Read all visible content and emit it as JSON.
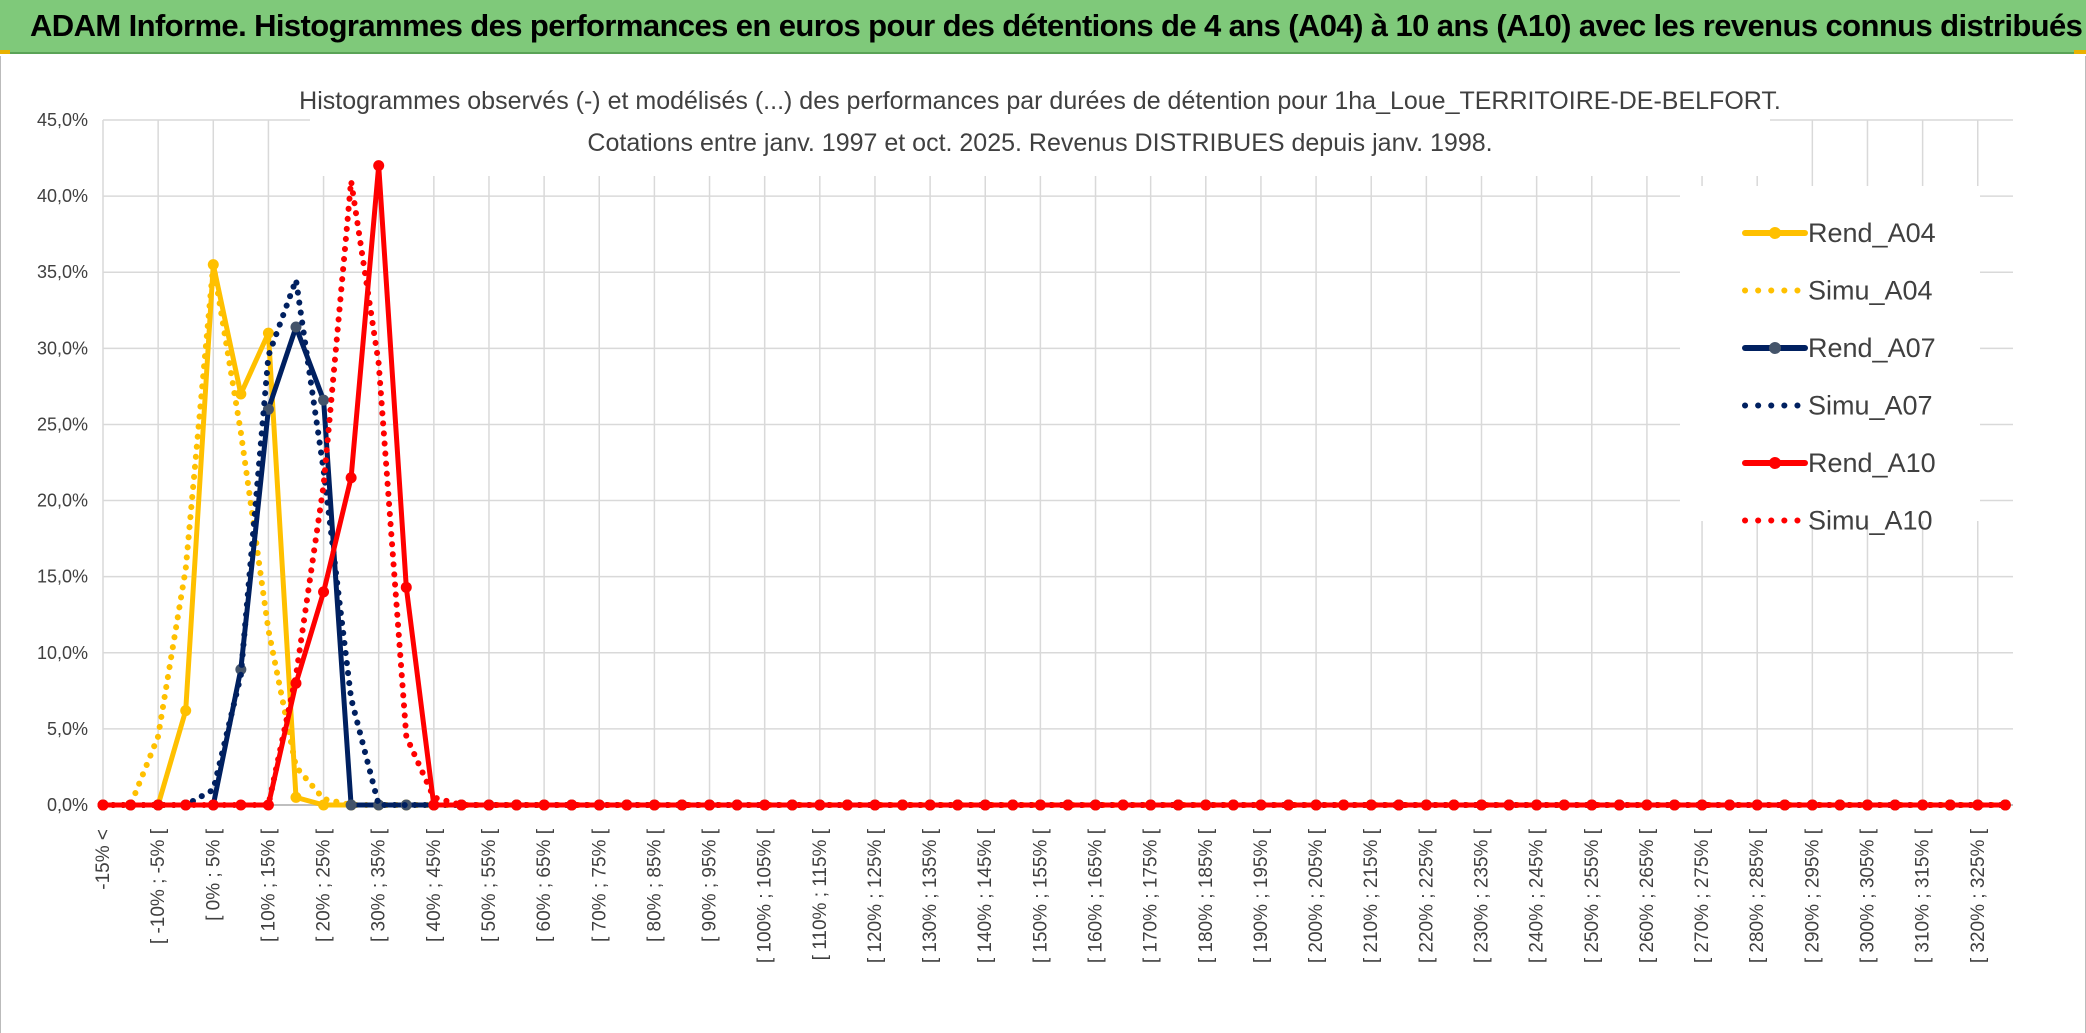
{
  "banner": {
    "title": "ADAM Informe. Histogrammes des performances en euros pour des détentions de 4 ans (A04) à 10 ans (A10) avec les revenus connus distribués"
  },
  "colors": {
    "banner_bg": "#7fc97a",
    "A04": "#ffc000",
    "A07": "#002060",
    "A10": "#ff0000",
    "A07_marker": "#44546a"
  },
  "chart_data": {
    "type": "line",
    "title": "Histogrammes observés (-) et modélisés (...) des performances par durées de détention pour 1ha_Loue_TERRITOIRE-DE-BELFORT.",
    "subtitle": "Cotations entre janv. 1997 et oct. 2025. Revenus DISTRIBUES depuis janv. 1998.",
    "ylim": [
      0,
      45
    ],
    "y_ticks": [
      "0,0%",
      "5,0%",
      "10,0%",
      "15,0%",
      "20,0%",
      "25,0%",
      "30,0%",
      "35,0%",
      "40,0%",
      "45,0%"
    ],
    "x_labels": [
      "-15% <",
      "[ -10% ; -5% [",
      "[ 0% ; 5% [",
      "[ 10% ; 15% [",
      "[ 20% ; 25% [",
      "[ 30% ; 35% [",
      "[ 40% ; 45% [",
      "[ 50% ; 55% [",
      "[ 60% ; 65% [",
      "[ 70% ; 75% [",
      "[ 80% ; 85% [",
      "[ 90% ; 95% [",
      "[ 100% ; 105% [",
      "[ 110% ; 115% [",
      "[ 120% ; 125% [",
      "[ 130% ; 135% [",
      "[ 140% ; 145% [",
      "[ 150% ; 155% [",
      "[ 160% ; 165% [",
      "[ 170% ; 175% [",
      "[ 180% ; 185% [",
      "[ 190% ; 195% [",
      "[ 200% ; 205% [",
      "[ 210% ; 215% [",
      "[ 220% ; 225% [",
      "[ 230% ; 235% [",
      "[ 240% ; 245% [",
      "[ 250% ; 255% [",
      "[ 260% ; 265% [",
      "[ 270% ; 275% [",
      "[ 280% ; 285% [",
      "[ 290% ; 295% [",
      "[ 300% ; 305% [",
      "[ 310% ; 315% [",
      "[ 320% ; 325% ["
    ],
    "grid": true,
    "legend_position": "right",
    "series": [
      {
        "name": "Rend_A04",
        "style": "solid",
        "color": "#ffc000",
        "values": [
          0,
          0,
          0,
          6.2,
          35.5,
          27.0,
          31.0,
          0.5,
          0,
          0
        ]
      },
      {
        "name": "Simu_A04",
        "style": "dotted",
        "color": "#ffc000",
        "values": [
          0,
          0,
          4.5,
          15.5,
          35.5,
          24.5,
          11.5,
          2.5,
          0.4,
          0
        ]
      },
      {
        "name": "Rend_A07",
        "style": "solid",
        "color": "#002060",
        "values": [
          0,
          0,
          0,
          0,
          0,
          8.9,
          26.0,
          31.4,
          26.6,
          0,
          0,
          0
        ]
      },
      {
        "name": "Simu_A07",
        "style": "dotted",
        "color": "#002060",
        "values": [
          0,
          0,
          0,
          0,
          1.0,
          8.5,
          29.5,
          34.5,
          22.0,
          7.0,
          0,
          0
        ]
      },
      {
        "name": "Rend_A10",
        "style": "solid",
        "color": "#ff0000",
        "values": [
          0,
          0,
          0,
          0,
          0,
          0,
          0,
          8.0,
          14.0,
          21.5,
          42.0,
          14.3,
          0
        ]
      },
      {
        "name": "Simu_A10",
        "style": "dotted",
        "color": "#ff0000",
        "values": [
          0,
          0,
          0,
          0,
          0,
          0,
          0,
          8.5,
          21.0,
          41.0,
          29.0,
          4.5,
          0.5
        ]
      }
    ]
  }
}
